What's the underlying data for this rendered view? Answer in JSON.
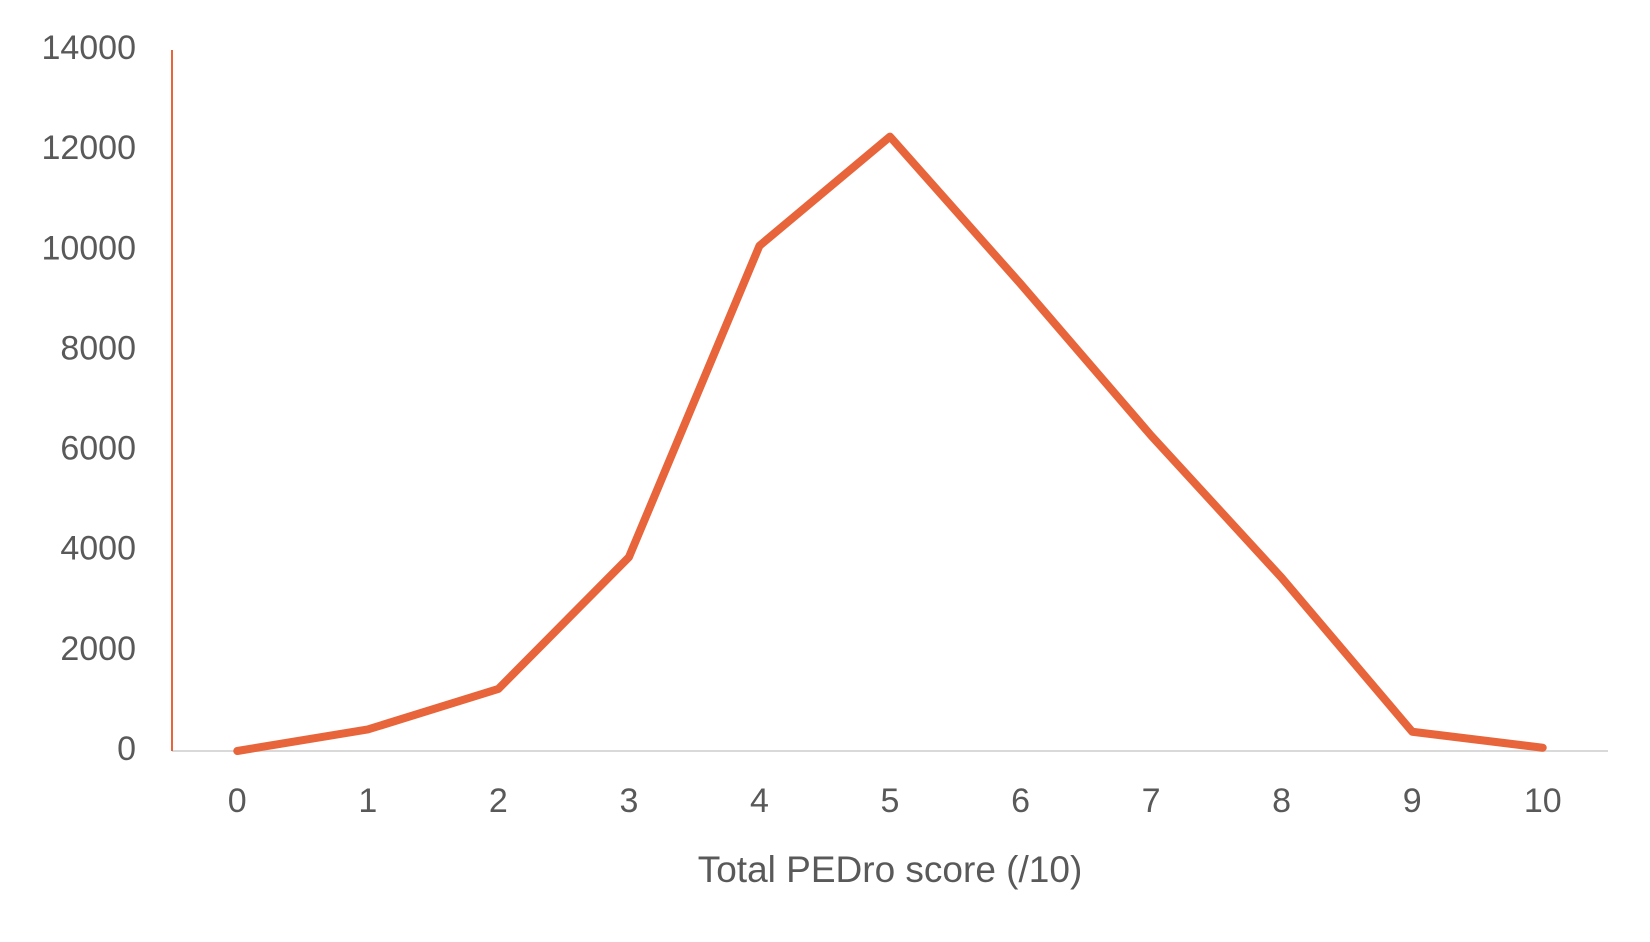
{
  "chart_data": {
    "type": "line",
    "x_label": "Total PEDro score (/10)",
    "x": [
      0,
      1,
      2,
      3,
      4,
      5,
      6,
      7,
      8,
      9,
      10
    ],
    "values": [
      0,
      430,
      1240,
      3870,
      10090,
      12270,
      9330,
      6300,
      3460,
      385,
      65
    ],
    "color": "#e8643a",
    "axis_color": "#e8643a",
    "xlim": [
      -0.5,
      10.5
    ],
    "ylim": [
      0,
      14000
    ],
    "yticks": [
      0,
      2000,
      4000,
      6000,
      8000,
      10000,
      12000,
      14000
    ],
    "grid": false
  }
}
